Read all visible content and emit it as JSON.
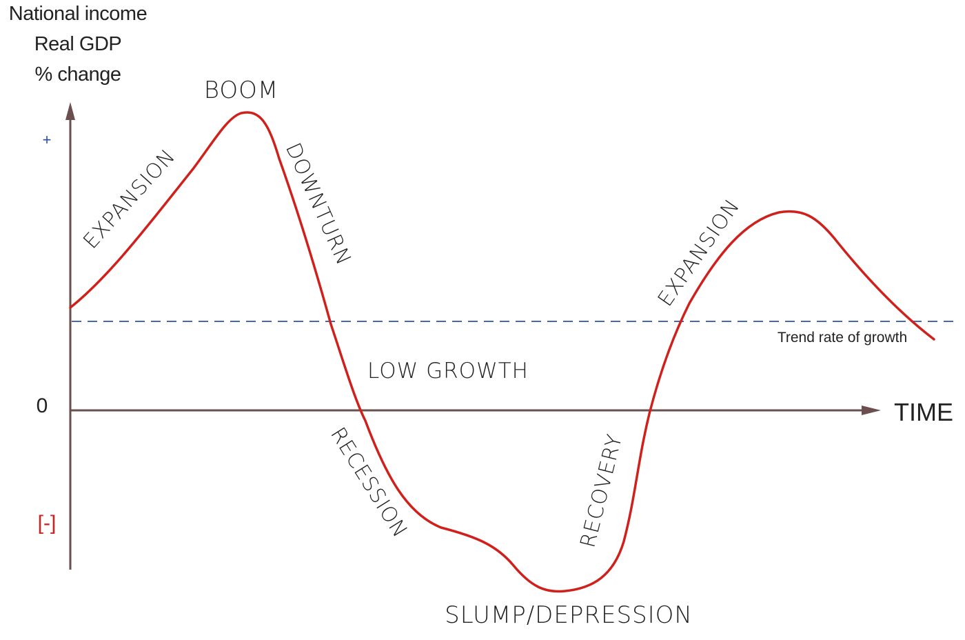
{
  "y_axis_label": {
    "line1": "National income",
    "line2": "Real GDP",
    "line3": "% change"
  },
  "ticks": {
    "plus": "+",
    "zero": "0",
    "minus": "[-]"
  },
  "x_axis_label": "TIME",
  "trend_label": "Trend rate of growth",
  "phases": {
    "expansion_1": "EXPANSION",
    "boom": "BOOM",
    "downturn": "DOWNTURN",
    "low_growth": "LOW GROWTH",
    "recession": "RECESSION",
    "slump": "SLUMP/DEPRESSION",
    "recovery": "RECOVERY",
    "expansion_2": "EXPANSION"
  },
  "colors": {
    "curve": "#d0201c",
    "axis": "#6b4e4e",
    "trend": "#4a66b0",
    "plus_tick": "#2b4aa8",
    "minus_tick": "#d0201c"
  }
}
